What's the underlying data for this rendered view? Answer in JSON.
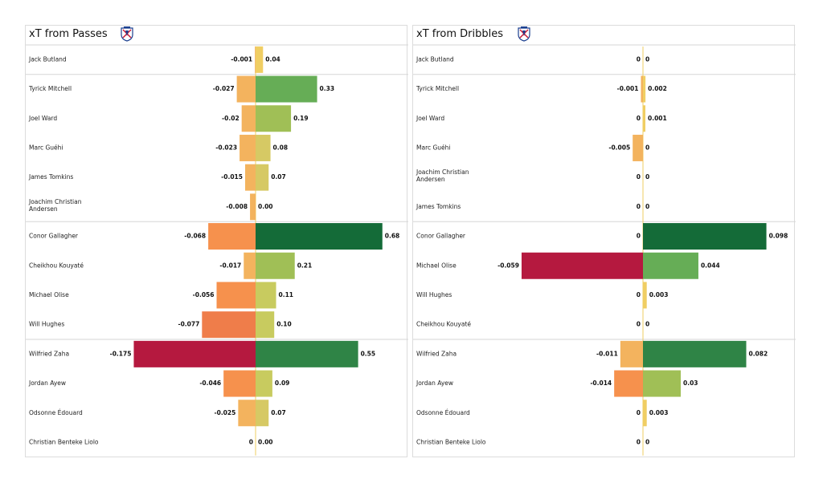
{
  "colors": {
    "neg_small": "#f3b35e",
    "neg_mid": "#f6914d",
    "neg_large": "#ef7d4a",
    "neg_max": "#b5193f",
    "pos_tiny": "#f0ce63",
    "pos_small": "#d6c964",
    "pos_low": "#c8cb5f",
    "pos_mid": "#a0bf56",
    "pos_high": "#66ad56",
    "pos_strong": "#2f8446",
    "pos_max": "#146b38",
    "zero_line": "#efcd60",
    "separator": "#d6d6d6"
  },
  "chart_data": [
    {
      "type": "bar",
      "title": "xT from Passes",
      "crest_icon": "crystal-palace-crest-icon",
      "players": [
        "Jack Butland",
        "Tyrick Mitchell",
        "Joel Ward",
        "Marc Guéhi",
        "James Tomkins",
        "Joachim Christian Andersen",
        "Conor Gallagher",
        "Cheikhou Kouyaté",
        "Michael Olise",
        "Will Hughes",
        "Wilfried Zaha",
        "Jordan Ayew",
        "Odsonne Édouard",
        "Christian Benteke Liolo"
      ],
      "group_breaks_after": [
        0,
        5,
        9
      ],
      "negative": [
        -0.001,
        -0.027,
        -0.02,
        -0.023,
        -0.015,
        -0.008,
        -0.068,
        -0.017,
        -0.056,
        -0.077,
        -0.175,
        -0.046,
        -0.025,
        0
      ],
      "negative_labels": [
        "-0.001",
        "-0.027",
        "-0.02",
        "-0.023",
        "-0.015",
        "-0.008",
        "-0.068",
        "-0.017",
        "-0.056",
        "-0.077",
        "-0.175",
        "-0.046",
        "-0.025",
        "0"
      ],
      "positive": [
        0.04,
        0.33,
        0.19,
        0.08,
        0.07,
        0.0,
        0.68,
        0.21,
        0.11,
        0.1,
        0.55,
        0.09,
        0.07,
        0.0
      ],
      "positive_labels": [
        "0.04",
        "0.33",
        "0.19",
        "0.08",
        "0.07",
        "0.00",
        "0.68",
        "0.21",
        "0.11",
        "0.10",
        "0.55",
        "0.09",
        "0.07",
        "0.00"
      ],
      "neg_color_keys": [
        "neg_small",
        "neg_small",
        "neg_small",
        "neg_small",
        "neg_small",
        "neg_small",
        "neg_mid",
        "neg_small",
        "neg_mid",
        "neg_large",
        "neg_max",
        "neg_mid",
        "neg_small",
        "zero_line"
      ],
      "pos_color_keys": [
        "pos_tiny",
        "pos_high",
        "pos_mid",
        "pos_small",
        "pos_small",
        "pos_tiny",
        "pos_max",
        "pos_mid",
        "pos_low",
        "pos_low",
        "pos_strong",
        "pos_low",
        "pos_small",
        "zero_line"
      ]
    },
    {
      "type": "bar",
      "title": "xT from Dribbles",
      "crest_icon": "crystal-palace-crest-icon",
      "players": [
        "Jack Butland",
        "Tyrick Mitchell",
        "Joel Ward",
        "Marc Guéhi",
        "Joachim Christian Andersen",
        "James Tomkins",
        "Conor Gallagher",
        "Michael Olise",
        "Will Hughes",
        "Cheikhou Kouyaté",
        "Wilfried Zaha",
        "Jordan Ayew",
        "Odsonne Édouard",
        "Christian Benteke Liolo"
      ],
      "group_breaks_after": [
        0,
        5,
        9
      ],
      "negative": [
        0,
        -0.001,
        0,
        -0.005,
        0,
        0,
        0,
        -0.059,
        0,
        0,
        -0.011,
        -0.014,
        0,
        0
      ],
      "negative_labels": [
        "0",
        "-0.001",
        "0",
        "-0.005",
        "0",
        "0",
        "0",
        "-0.059",
        "0",
        "0",
        "-0.011",
        "-0.014",
        "0",
        "0"
      ],
      "positive": [
        0,
        0.002,
        0.001,
        0,
        0,
        0,
        0.098,
        0.044,
        0.003,
        0,
        0.082,
        0.03,
        0.003,
        0
      ],
      "positive_labels": [
        "0",
        "0.002",
        "0.001",
        "0",
        "0",
        "0",
        "0.098",
        "0.044",
        "0.003",
        "0",
        "0.082",
        "0.03",
        "0.003",
        "0"
      ],
      "neg_color_keys": [
        "zero_line",
        "neg_small",
        "zero_line",
        "neg_small",
        "zero_line",
        "zero_line",
        "zero_line",
        "neg_max",
        "zero_line",
        "zero_line",
        "neg_small",
        "neg_mid",
        "zero_line",
        "zero_line"
      ],
      "pos_color_keys": [
        "zero_line",
        "pos_tiny",
        "pos_tiny",
        "zero_line",
        "zero_line",
        "zero_line",
        "pos_max",
        "pos_high",
        "pos_tiny",
        "zero_line",
        "pos_strong",
        "pos_mid",
        "pos_tiny",
        "zero_line"
      ]
    }
  ]
}
